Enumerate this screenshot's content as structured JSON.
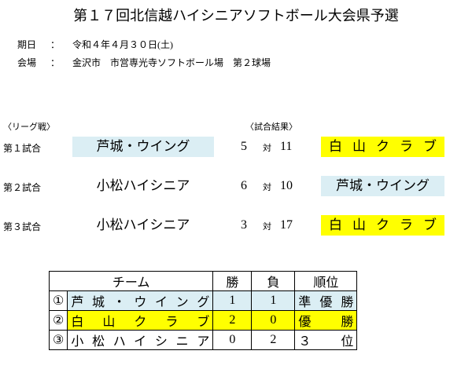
{
  "header": {
    "title": "第１７回北信越ハイシニアソフトボール大会県予選"
  },
  "info": [
    {
      "label": "期日",
      "colon": "：",
      "value": "令和４年４月３０日(土)"
    },
    {
      "label": "会場",
      "colon": "：",
      "value": "金沢市　市営専光寺ソフトボール場　第２球場"
    }
  ],
  "league_label": "〈リーグ戦〉",
  "results_label": "〈試合結果〉",
  "vs": "対",
  "games": [
    {
      "label": "第１試合",
      "team_a": "芦城・ウイング",
      "score_a": "5",
      "score_b": "11",
      "team_b": "白山クラブ"
    },
    {
      "label": "第２試合",
      "team_a": "小松ハイシニア",
      "score_a": "6",
      "score_b": "10",
      "team_b": "芦城・ウイング"
    },
    {
      "label": "第３試合",
      "team_a": "小松ハイシニア",
      "score_a": "3",
      "score_b": "17",
      "team_b": "白山クラブ"
    }
  ],
  "table": {
    "headers": [
      "チーム",
      "勝",
      "負",
      "順位"
    ],
    "rows": [
      [
        "①",
        "芦城・ウイング",
        "1",
        "1",
        "準優勝"
      ],
      [
        "②",
        "白山クラブ",
        "2",
        "0",
        "優勝"
      ],
      [
        "③",
        "小松ハイシニア",
        "0",
        "2",
        "３位"
      ]
    ]
  }
}
